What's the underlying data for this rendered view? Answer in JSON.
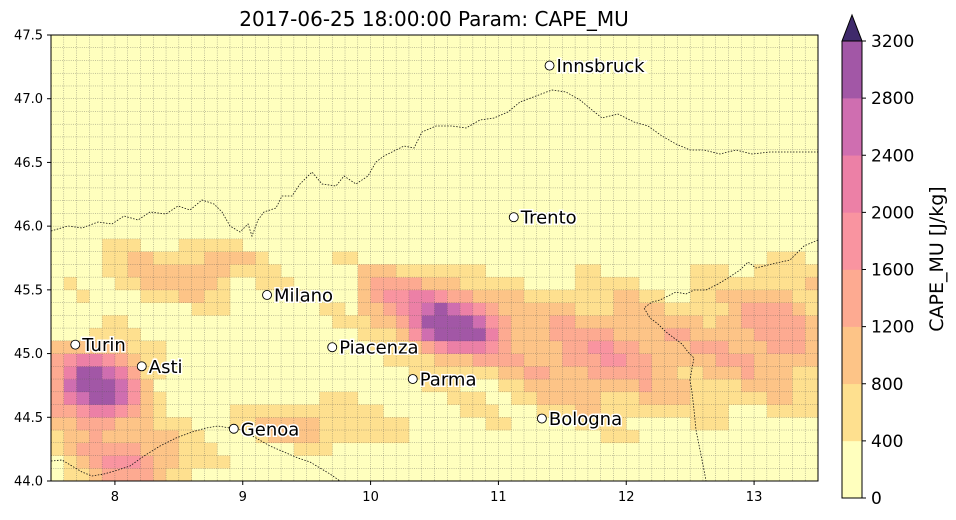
{
  "title": "2017-06-25 18:00:00 Param: CAPE_MU",
  "map": {
    "lon_range": [
      7.5,
      13.5
    ],
    "lat_range": [
      44.0,
      47.5
    ],
    "grid_cells": {
      "cols": 60,
      "rows": 35
    },
    "x_ticks": [
      "8",
      "9",
      "10",
      "11",
      "12",
      "13"
    ],
    "y_ticks": [
      "44.0",
      "44.5",
      "45.0",
      "45.5",
      "46.0",
      "46.5",
      "47.0",
      "47.5"
    ],
    "gridlines": "dotted"
  },
  "colorbar": {
    "label": "CAPE_MU  [J/kg]",
    "ticks": [
      "0",
      "400",
      "800",
      "1200",
      "1600",
      "2000",
      "2400",
      "2800",
      "3200"
    ],
    "levels": [
      0,
      400,
      800,
      1200,
      1600,
      2000,
      2400,
      2800,
      3200
    ],
    "colors": [
      "#ffffbe",
      "#fee08f",
      "#fdc487",
      "#fdaa91",
      "#f994a0",
      "#ec80a6",
      "#cf6eb0",
      "#a257a6"
    ],
    "extend": "max"
  },
  "cities": [
    {
      "name": "Innsbruck",
      "lon": 11.4,
      "lat": 47.26
    },
    {
      "name": "Trento",
      "lon": 11.12,
      "lat": 46.07
    },
    {
      "name": "Milano",
      "lon": 9.19,
      "lat": 45.46
    },
    {
      "name": "Turin",
      "lon": 7.69,
      "lat": 45.07
    },
    {
      "name": "Asti",
      "lon": 8.21,
      "lat": 44.9
    },
    {
      "name": "Piacenza",
      "lon": 9.7,
      "lat": 45.05
    },
    {
      "name": "Parma",
      "lon": 10.33,
      "lat": 44.8
    },
    {
      "name": "Genoa",
      "lon": 8.93,
      "lat": 44.41
    },
    {
      "name": "Bologna",
      "lon": 11.34,
      "lat": 44.49
    }
  ]
}
